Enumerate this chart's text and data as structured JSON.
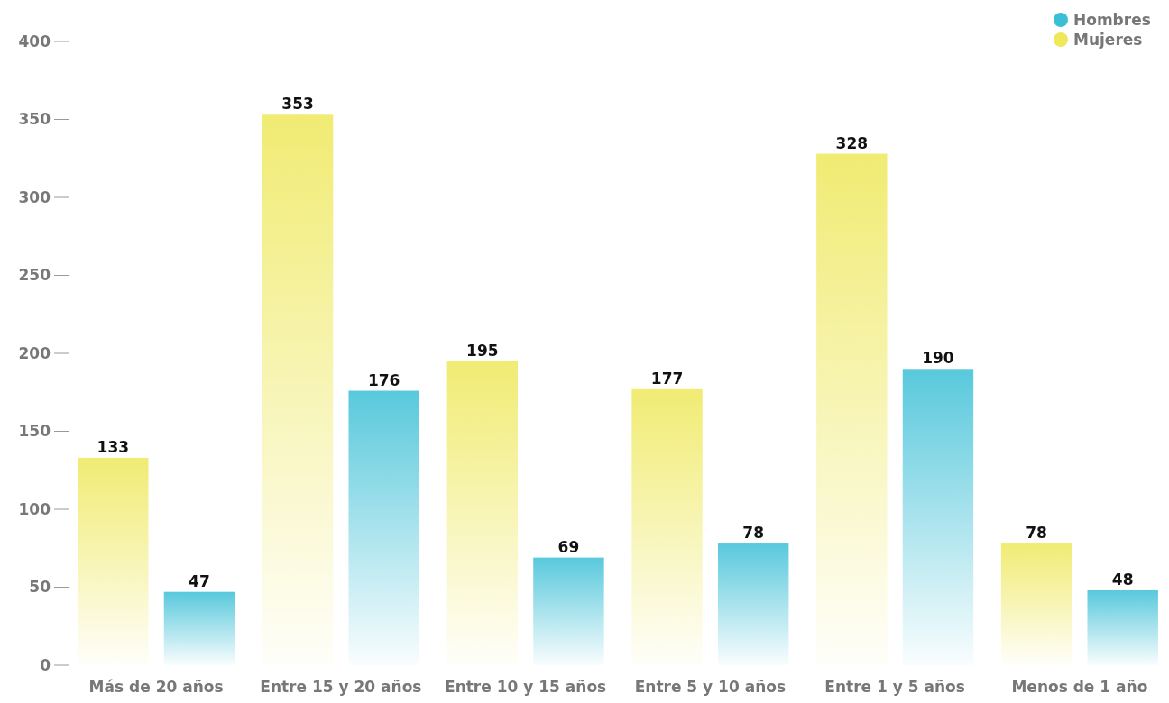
{
  "chart_data": {
    "type": "bar",
    "categories": [
      "Más de 20 años",
      "Entre 15 y 20 años",
      "Entre 10 y 15 años",
      "Entre 5 y 10 años",
      "Entre 1 y 5 años",
      "Menos de 1 año"
    ],
    "series": [
      {
        "name": "Mujeres",
        "color": "#eee85a",
        "values": [
          133,
          353,
          195,
          177,
          328,
          78
        ]
      },
      {
        "name": "Hombres",
        "color": "#3bbfd6",
        "values": [
          47,
          176,
          69,
          78,
          190,
          48
        ]
      }
    ],
    "ylim": [
      0,
      400
    ],
    "yticks": [
      0,
      50,
      100,
      150,
      200,
      250,
      300,
      350,
      400
    ],
    "data_labels": true,
    "legend": "top right",
    "grid": false
  }
}
